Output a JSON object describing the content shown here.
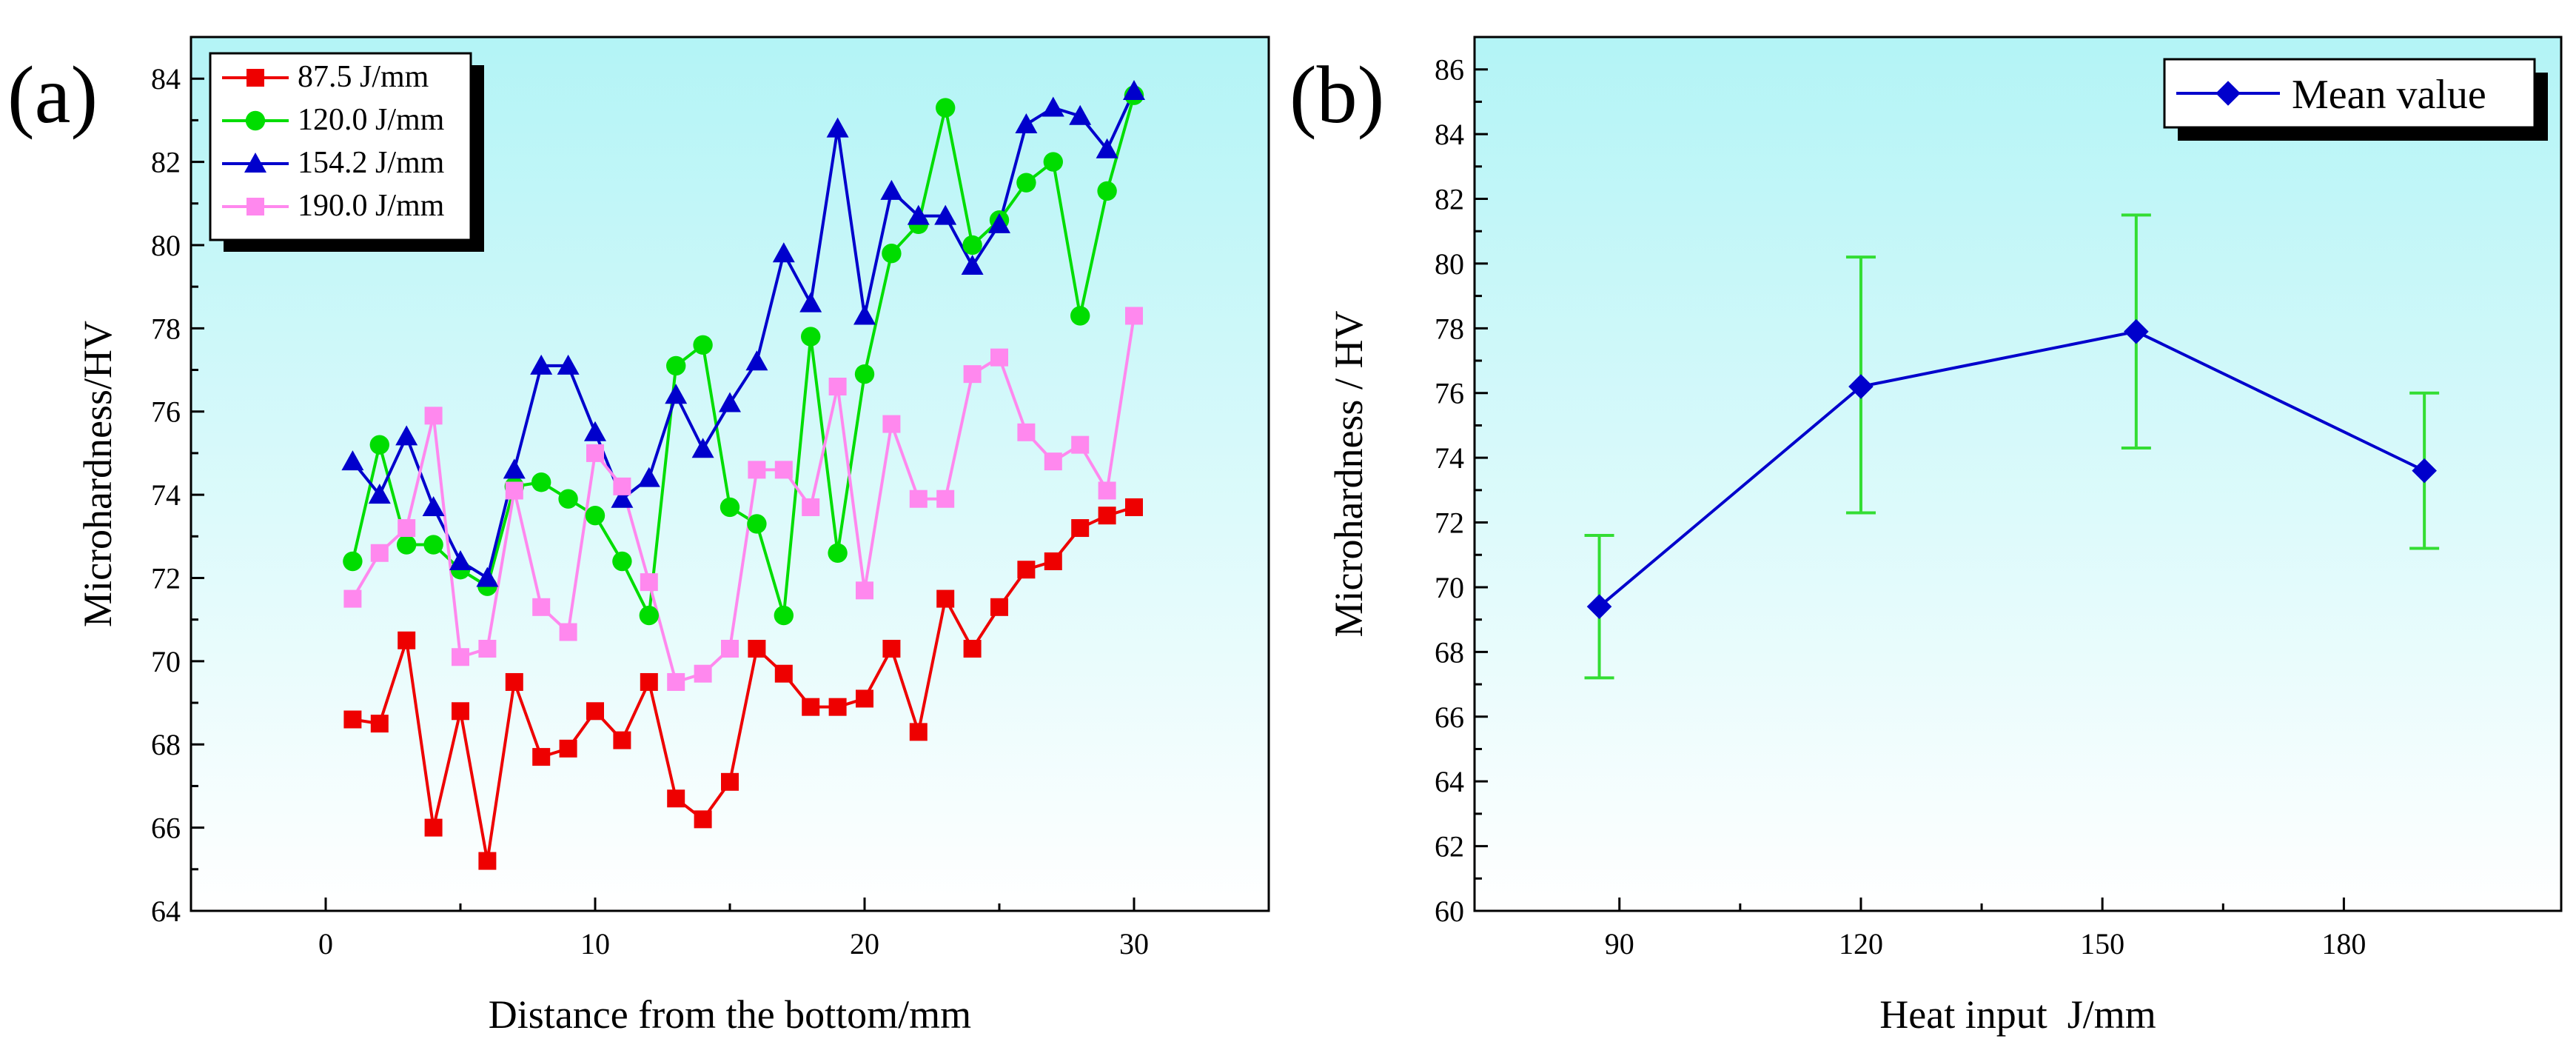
{
  "colors": {
    "plot_bg_top": "#b3f4f6",
    "plot_bg_bottom": "#ffffff",
    "red": "#ee0000",
    "green": "#00dd00",
    "blue": "#0000cc",
    "pink": "#ff88ee",
    "errorbar": "#33dd33"
  },
  "chart_data": [
    {
      "panel": "(a)",
      "type": "line",
      "xlabel": "Distance from the bottom/mm",
      "ylabel": "Microhardness/HV",
      "xlim": [
        -5,
        35
      ],
      "ylim": [
        64,
        85
      ],
      "xticks": [
        0,
        10,
        20,
        30
      ],
      "yticks": [
        64,
        66,
        68,
        70,
        72,
        74,
        76,
        78,
        80,
        82,
        84
      ],
      "legend_position": "top-left",
      "x": [
        1,
        2,
        3,
        4,
        5,
        6,
        7,
        8,
        9,
        10,
        11,
        12,
        13,
        14,
        15,
        16,
        17,
        18,
        19,
        20,
        21,
        22,
        23,
        24,
        25,
        26,
        27,
        28,
        29,
        30
      ],
      "series": [
        {
          "name": "87.5 J/mm",
          "color": "#ee0000",
          "marker": "square",
          "values": [
            68.6,
            68.5,
            70.5,
            66.0,
            68.8,
            65.2,
            69.5,
            67.7,
            67.9,
            68.8,
            68.1,
            69.5,
            66.7,
            66.2,
            67.1,
            70.3,
            69.7,
            68.9,
            68.9,
            69.1,
            70.3,
            68.3,
            71.5,
            70.3,
            71.3,
            72.2,
            72.4,
            73.2,
            73.5,
            73.7
          ]
        },
        {
          "name": "120.0 J/mm",
          "color": "#00dd00",
          "marker": "circle",
          "values": [
            72.4,
            75.2,
            72.8,
            72.8,
            72.2,
            71.8,
            74.2,
            74.3,
            73.9,
            73.5,
            72.4,
            71.1,
            77.1,
            77.6,
            73.7,
            73.3,
            71.1,
            77.8,
            72.6,
            76.9,
            79.8,
            80.5,
            83.3,
            80.0,
            80.6,
            81.5,
            82.0,
            78.3,
            81.3,
            83.6
          ]
        },
        {
          "name": "154.2 J/mm",
          "color": "#0000cc",
          "marker": "triangle",
          "values": [
            74.8,
            74.0,
            75.4,
            73.7,
            72.4,
            72.0,
            74.6,
            77.1,
            77.1,
            75.5,
            73.9,
            74.4,
            76.4,
            75.1,
            76.2,
            77.2,
            79.8,
            78.6,
            82.8,
            78.3,
            81.3,
            80.7,
            80.7,
            79.5,
            80.5,
            82.9,
            83.3,
            83.1,
            82.3,
            83.7
          ]
        },
        {
          "name": "190.0 J/mm",
          "color": "#ff88ee",
          "marker": "square",
          "values": [
            71.5,
            72.6,
            73.2,
            75.9,
            70.1,
            70.3,
            74.1,
            71.3,
            70.7,
            75.0,
            74.2,
            71.9,
            69.5,
            69.7,
            70.3,
            74.6,
            74.6,
            73.7,
            76.6,
            71.7,
            75.7,
            73.9,
            73.9,
            76.9,
            77.3,
            75.5,
            74.8,
            75.2,
            74.1,
            78.3
          ]
        }
      ]
    },
    {
      "panel": "(b)",
      "type": "line",
      "xlabel": "Heat input  J/mm",
      "ylabel": "Microhardness / HV",
      "xlim": [
        72,
        207
      ],
      "ylim": [
        60,
        87
      ],
      "xticks": [
        90,
        120,
        150,
        180
      ],
      "yticks": [
        60,
        62,
        64,
        66,
        68,
        70,
        72,
        74,
        76,
        78,
        80,
        82,
        84,
        86
      ],
      "legend_position": "top-right",
      "series": [
        {
          "name": "Mean value",
          "color": "#0000cc",
          "marker": "diamond",
          "x": [
            87.5,
            120.0,
            154.2,
            190.0
          ],
          "values": [
            69.4,
            76.2,
            77.9,
            73.6
          ],
          "error_low": [
            67.2,
            72.3,
            74.3,
            71.2
          ],
          "error_high": [
            71.6,
            80.2,
            81.5,
            76.0
          ]
        }
      ]
    }
  ]
}
